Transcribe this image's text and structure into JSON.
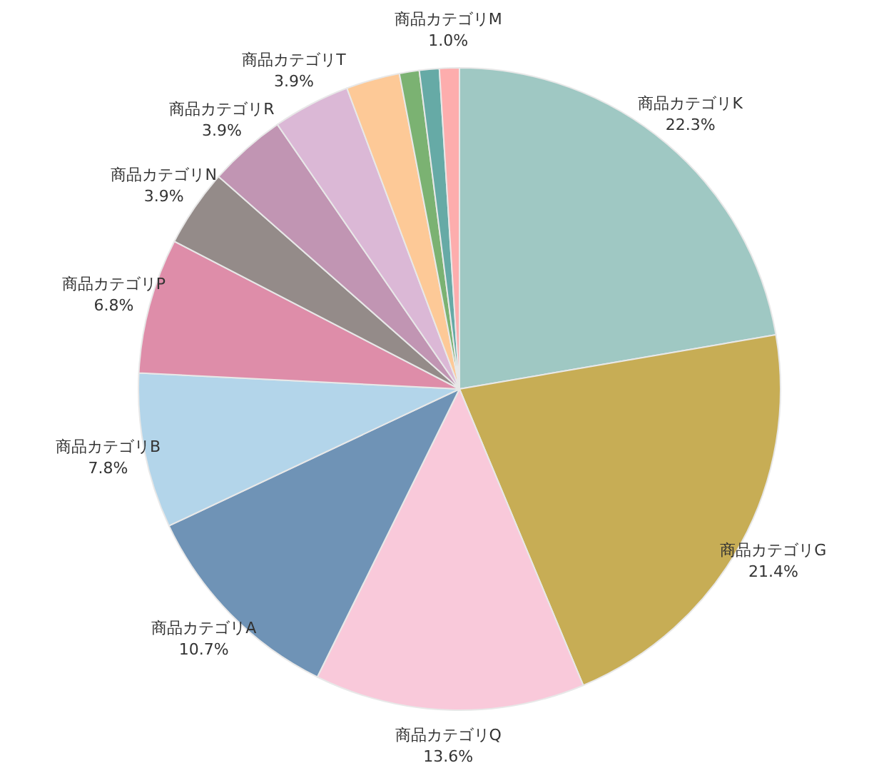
{
  "chart_data": {
    "type": "pie",
    "categories": [
      "商品カテゴリK",
      "商品カテゴリG",
      "商品カテゴリQ",
      "商品カテゴリA",
      "商品カテゴリB",
      "商品カテゴリP",
      "商品カテゴリN",
      "商品カテゴリR",
      "商品カテゴリT",
      null,
      null,
      null,
      "商品カテゴリM"
    ],
    "values": [
      22.3,
      21.4,
      13.6,
      10.7,
      7.8,
      6.8,
      3.9,
      3.9,
      3.9,
      2.7,
      1.0,
      1.0,
      1.0
    ],
    "value_labels": [
      "22.3%",
      "21.4%",
      "13.6%",
      "10.7%",
      "7.8%",
      "6.8%",
      "3.9%",
      "3.9%",
      "3.9%",
      null,
      null,
      null,
      "1.0%"
    ],
    "colors": [
      "#9fc8c3",
      "#c7ad55",
      "#f9c9da",
      "#6f93b6",
      "#b3d5ea",
      "#de8da9",
      "#948b89",
      "#c195b3",
      "#dbb8d6",
      "#fdc997",
      "#7bb272",
      "#66aaa6",
      "#fdadad"
    ],
    "legend": false
  }
}
